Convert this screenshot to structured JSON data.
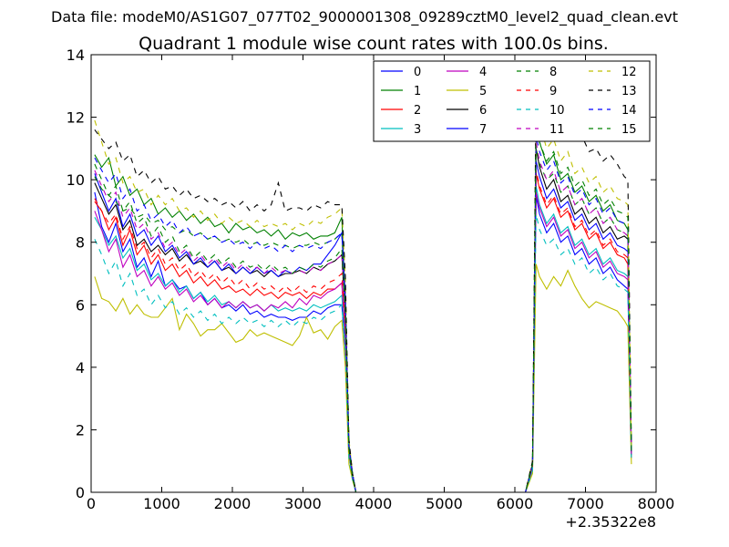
{
  "chart_data": {
    "type": "line",
    "suptitle": "Data file: modeM0/AS1G07_077T02_9000001308_09289cztM0_level2_quad_clean.evt",
    "title": "Quadrant 1 module wise count rates with 100.0s bins.",
    "xlabel": "",
    "ylabel": "",
    "x_offset_label": "+2.35322e8",
    "xlim": [
      0,
      8000
    ],
    "ylim": [
      0,
      14
    ],
    "xticks": [
      0,
      1000,
      2000,
      3000,
      4000,
      5000,
      6000,
      7000,
      8000
    ],
    "yticks": [
      0,
      2,
      4,
      6,
      8,
      10,
      12,
      14
    ],
    "grid": false,
    "legend": {
      "position": "top-right",
      "ncol": 4
    },
    "x": [
      50,
      150,
      250,
      350,
      450,
      550,
      650,
      750,
      850,
      950,
      1050,
      1150,
      1250,
      1350,
      1450,
      1550,
      1650,
      1750,
      1850,
      1950,
      2050,
      2150,
      2250,
      2350,
      2450,
      2550,
      2650,
      2750,
      2850,
      2950,
      3050,
      3150,
      3250,
      3350,
      3450,
      3550,
      3600,
      3650,
      3700,
      3750,
      3850,
      4000,
      6000,
      6150,
      6250,
      6300,
      6350,
      6450,
      6550,
      6650,
      6750,
      6850,
      6950,
      7050,
      7150,
      7250,
      7350,
      7450,
      7550,
      7600,
      7650
    ],
    "series": [
      {
        "name": "0",
        "color": "#0000ff",
        "style": "solid",
        "values": [
          9.6,
          8.5,
          8.0,
          8.6,
          7.7,
          8.1,
          7.2,
          7.5,
          6.9,
          7.4,
          6.6,
          6.8,
          6.5,
          6.6,
          6.2,
          6.4,
          6.0,
          6.2,
          5.9,
          6.0,
          5.8,
          6.0,
          5.7,
          5.8,
          5.6,
          5.7,
          5.6,
          5.6,
          5.5,
          5.6,
          5.6,
          5.8,
          5.7,
          5.9,
          6.0,
          6.0,
          4.5,
          1.2,
          0.5,
          0,
          0,
          0,
          0,
          0,
          0.7,
          9.5,
          8.9,
          8.3,
          8.6,
          8.0,
          8.2,
          7.6,
          7.8,
          7.3,
          7.5,
          7.0,
          7.2,
          6.8,
          6.6,
          6.5,
          1.1
        ]
      },
      {
        "name": "1",
        "color": "#008000",
        "style": "solid",
        "values": [
          10.8,
          10.4,
          10.7,
          9.8,
          10.1,
          9.5,
          9.7,
          9.2,
          9.4,
          8.9,
          9.1,
          8.8,
          9.0,
          8.7,
          8.9,
          8.6,
          8.8,
          8.5,
          8.6,
          8.3,
          8.6,
          8.4,
          8.5,
          8.3,
          8.4,
          8.2,
          8.4,
          8.1,
          8.3,
          8.2,
          8.3,
          8.1,
          8.2,
          8.2,
          8.3,
          8.8,
          6.0,
          1.5,
          0.6,
          0,
          0,
          0,
          0,
          0,
          0.9,
          11.6,
          11.2,
          10.5,
          10.8,
          10.0,
          10.2,
          9.6,
          9.8,
          9.3,
          9.5,
          9.0,
          9.2,
          8.7,
          8.6,
          8.4,
          1.3
        ]
      },
      {
        "name": "2",
        "color": "#ff0000",
        "style": "solid",
        "values": [
          9.3,
          9.0,
          8.4,
          8.8,
          7.9,
          8.4,
          7.6,
          7.9,
          7.3,
          7.6,
          7.1,
          7.3,
          6.9,
          7.1,
          6.7,
          6.9,
          6.6,
          6.8,
          6.5,
          6.6,
          6.4,
          6.5,
          6.3,
          6.5,
          6.3,
          6.4,
          6.2,
          6.4,
          6.3,
          6.4,
          6.2,
          6.4,
          6.3,
          6.5,
          6.5,
          6.7,
          5.0,
          1.3,
          0.5,
          0,
          0,
          0,
          0,
          0,
          0.8,
          10.2,
          9.7,
          9.1,
          9.4,
          8.8,
          9.0,
          8.4,
          8.6,
          8.1,
          8.3,
          7.8,
          8.0,
          7.6,
          7.5,
          7.3,
          1.2
        ]
      },
      {
        "name": "3",
        "color": "#00bfbf",
        "style": "solid",
        "values": [
          8.8,
          8.4,
          7.9,
          8.2,
          7.5,
          7.8,
          7.1,
          7.3,
          6.8,
          7.0,
          6.6,
          6.8,
          6.4,
          6.6,
          6.2,
          6.4,
          6.1,
          6.3,
          6.0,
          6.1,
          5.9,
          6.1,
          5.9,
          6.0,
          5.8,
          6.0,
          5.8,
          5.9,
          5.8,
          5.9,
          5.8,
          6.0,
          5.9,
          6.0,
          6.1,
          6.3,
          4.7,
          1.2,
          0.5,
          0,
          0,
          0,
          0,
          0,
          0.7,
          9.8,
          9.2,
          8.6,
          8.9,
          8.3,
          8.5,
          7.9,
          8.1,
          7.6,
          7.8,
          7.3,
          7.5,
          7.1,
          7.0,
          6.9,
          1.1
        ]
      },
      {
        "name": "4",
        "color": "#bf00bf",
        "style": "solid",
        "values": [
          9.0,
          8.4,
          7.7,
          8.1,
          7.2,
          7.6,
          6.9,
          7.1,
          6.6,
          6.9,
          6.5,
          6.7,
          6.3,
          6.5,
          6.1,
          6.3,
          6.0,
          6.2,
          5.9,
          6.1,
          5.9,
          6.1,
          5.9,
          6.0,
          5.8,
          6.0,
          5.9,
          6.1,
          5.9,
          6.2,
          6.0,
          6.3,
          6.2,
          6.4,
          6.5,
          6.7,
          5.0,
          1.3,
          0.5,
          0,
          0,
          0,
          0,
          0,
          0.8,
          9.6,
          9.1,
          8.5,
          8.8,
          8.2,
          8.4,
          7.8,
          8.0,
          7.5,
          7.7,
          7.2,
          7.4,
          7.0,
          6.9,
          6.8,
          1.1
        ]
      },
      {
        "name": "5",
        "color": "#bfbf00",
        "style": "solid",
        "values": [
          6.9,
          6.2,
          6.1,
          5.8,
          6.2,
          5.7,
          6.0,
          5.7,
          5.6,
          5.6,
          5.9,
          6.2,
          5.2,
          5.7,
          5.4,
          5.0,
          5.2,
          5.2,
          5.4,
          5.1,
          4.8,
          4.9,
          5.2,
          5.0,
          5.1,
          5.0,
          4.9,
          4.8,
          4.7,
          5.0,
          5.6,
          5.1,
          5.2,
          4.9,
          5.3,
          5.5,
          4.0,
          0.9,
          0.4,
          0,
          0,
          0,
          0,
          0,
          0.6,
          7.3,
          6.9,
          6.5,
          6.9,
          6.6,
          7.1,
          6.6,
          6.2,
          5.9,
          6.1,
          6.0,
          5.9,
          5.8,
          5.5,
          5.3,
          0.9
        ]
      },
      {
        "name": "6",
        "color": "#000000",
        "style": "solid",
        "values": [
          9.9,
          9.4,
          8.9,
          9.2,
          8.4,
          8.7,
          7.9,
          8.1,
          7.7,
          7.9,
          7.6,
          7.8,
          7.4,
          7.6,
          7.3,
          7.4,
          7.2,
          7.4,
          7.1,
          7.2,
          7.0,
          7.2,
          7.0,
          7.1,
          6.9,
          7.1,
          6.9,
          7.0,
          7.0,
          7.1,
          7.0,
          7.2,
          7.1,
          7.3,
          7.4,
          7.6,
          5.6,
          1.4,
          0.5,
          0,
          0,
          0,
          0,
          0,
          0.9,
          11.0,
          10.4,
          9.7,
          10.0,
          9.3,
          9.5,
          8.9,
          9.1,
          8.6,
          8.8,
          8.3,
          8.5,
          8.1,
          8.2,
          8.1,
          1.2
        ]
      },
      {
        "name": "7",
        "color": "#0000ff",
        "style": "solid",
        "values": [
          10.2,
          9.6,
          9.0,
          9.4,
          8.5,
          8.9,
          8.2,
          8.4,
          7.9,
          8.2,
          7.7,
          7.9,
          7.5,
          7.7,
          7.3,
          7.5,
          7.2,
          7.4,
          7.1,
          7.3,
          7.0,
          7.2,
          7.0,
          7.2,
          7.0,
          7.1,
          6.9,
          7.1,
          7.0,
          7.2,
          7.1,
          7.3,
          7.3,
          7.6,
          7.9,
          8.3,
          6.1,
          1.5,
          0.6,
          0,
          0,
          0,
          0,
          0,
          0.9,
          10.6,
          10.1,
          9.4,
          9.7,
          9.1,
          9.3,
          8.7,
          8.9,
          8.4,
          8.6,
          8.1,
          8.3,
          7.9,
          7.8,
          7.7,
          1.2
        ]
      },
      {
        "name": "8",
        "color": "#008000",
        "style": "dashed",
        "values": [
          10.1,
          9.7,
          9.5,
          9.3,
          9.0,
          9.1,
          8.8,
          8.9,
          8.6,
          8.7,
          8.4,
          8.5,
          8.3,
          8.4,
          8.2,
          8.3,
          8.1,
          8.2,
          8.0,
          8.1,
          8.0,
          8.1,
          7.9,
          8.0,
          7.9,
          8.0,
          7.9,
          7.9,
          7.8,
          7.9,
          7.9,
          8.0,
          7.9,
          8.0,
          8.1,
          8.3,
          6.2,
          1.5,
          0.6,
          0,
          0,
          0,
          0,
          0,
          0.9,
          11.0,
          10.5,
          10.0,
          10.2,
          9.6,
          9.8,
          9.2,
          9.4,
          8.9,
          9.1,
          8.6,
          8.8,
          8.4,
          8.3,
          8.2,
          1.3
        ]
      },
      {
        "name": "9",
        "color": "#ff0000",
        "style": "dashed",
        "values": [
          9.4,
          9.0,
          8.6,
          8.9,
          8.1,
          8.5,
          7.8,
          8.0,
          7.5,
          7.8,
          7.3,
          7.5,
          7.1,
          7.3,
          6.9,
          7.1,
          6.8,
          7.0,
          6.7,
          6.9,
          6.6,
          6.8,
          6.5,
          6.7,
          6.5,
          6.6,
          6.4,
          6.6,
          6.4,
          6.6,
          6.4,
          6.6,
          6.5,
          6.7,
          6.8,
          7.0,
          5.2,
          1.3,
          0.5,
          0,
          0,
          0,
          0,
          0,
          0.8,
          10.3,
          9.8,
          9.2,
          9.5,
          8.9,
          9.1,
          8.5,
          8.7,
          8.2,
          8.4,
          7.9,
          8.1,
          7.7,
          7.6,
          7.5,
          1.2
        ]
      },
      {
        "name": "10",
        "color": "#00bfbf",
        "style": "dashed",
        "values": [
          8.1,
          7.6,
          7.0,
          7.4,
          6.6,
          7.0,
          6.3,
          6.5,
          6.0,
          6.3,
          5.9,
          6.1,
          5.7,
          5.9,
          5.6,
          5.8,
          5.5,
          5.7,
          5.4,
          5.6,
          5.4,
          5.6,
          5.4,
          5.5,
          5.3,
          5.5,
          5.3,
          5.5,
          5.3,
          5.5,
          5.4,
          5.6,
          5.5,
          5.7,
          5.8,
          6.0,
          4.5,
          1.1,
          0.4,
          0,
          0,
          0,
          0,
          0,
          0.7,
          8.9,
          8.4,
          7.9,
          8.1,
          7.6,
          7.8,
          7.3,
          7.5,
          7.0,
          7.2,
          6.8,
          7.0,
          6.6,
          6.5,
          6.4,
          1.0
        ]
      },
      {
        "name": "11",
        "color": "#bf00bf",
        "style": "dashed",
        "values": [
          10.3,
          9.8,
          9.3,
          9.6,
          8.8,
          9.1,
          8.4,
          8.6,
          8.1,
          8.3,
          7.8,
          8.0,
          7.6,
          7.8,
          7.4,
          7.6,
          7.3,
          7.5,
          7.2,
          7.4,
          7.1,
          7.3,
          7.1,
          7.2,
          7.0,
          7.2,
          7.0,
          7.1,
          7.0,
          7.1,
          7.0,
          7.2,
          7.1,
          7.3,
          7.4,
          7.6,
          5.6,
          1.4,
          0.5,
          0,
          0,
          0,
          0,
          0,
          0.9,
          11.2,
          10.6,
          10.0,
          10.3,
          9.6,
          9.8,
          9.2,
          9.4,
          8.9,
          9.1,
          8.6,
          8.8,
          8.4,
          8.3,
          8.2,
          1.2
        ]
      },
      {
        "name": "12",
        "color": "#bfbf00",
        "style": "dashed",
        "values": [
          11.9,
          11.2,
          10.5,
          10.7,
          9.9,
          10.1,
          9.6,
          9.7,
          9.2,
          9.5,
          9.2,
          9.4,
          9.0,
          9.1,
          8.8,
          9.0,
          8.7,
          8.9,
          8.6,
          8.8,
          8.6,
          8.7,
          8.5,
          8.7,
          8.5,
          8.6,
          8.5,
          8.6,
          8.4,
          8.6,
          8.5,
          8.7,
          8.6,
          8.8,
          8.9,
          9.1,
          6.8,
          1.7,
          0.6,
          0,
          0,
          0,
          0,
          0,
          1.0,
          12.2,
          11.8,
          11.0,
          11.3,
          10.6,
          10.9,
          10.2,
          10.4,
          9.9,
          10.1,
          9.6,
          9.8,
          9.4,
          9.3,
          9.2,
          1.4
        ]
      },
      {
        "name": "13",
        "color": "#000000",
        "style": "dashed",
        "values": [
          11.6,
          11.3,
          11.0,
          11.2,
          10.6,
          10.8,
          10.1,
          10.3,
          9.9,
          10.1,
          9.7,
          9.8,
          9.5,
          9.7,
          9.4,
          9.5,
          9.3,
          9.4,
          9.2,
          9.3,
          9.1,
          9.3,
          9.0,
          9.2,
          9.0,
          9.2,
          9.9,
          9.0,
          9.1,
          9.1,
          9.0,
          9.2,
          9.1,
          9.3,
          9.2,
          9.2,
          6.9,
          1.7,
          0.6,
          0,
          0,
          0,
          0,
          0,
          1.0,
          12.9,
          12.6,
          12.0,
          12.2,
          11.6,
          11.8,
          11.2,
          11.4,
          10.9,
          11.0,
          10.6,
          10.8,
          10.5,
          10.1,
          10.0,
          1.5
        ]
      },
      {
        "name": "14",
        "color": "#0000ff",
        "style": "dashed",
        "values": [
          10.7,
          10.3,
          9.9,
          10.2,
          9.4,
          9.7,
          9.0,
          9.2,
          8.7,
          8.9,
          8.5,
          8.7,
          8.3,
          8.5,
          8.2,
          8.3,
          8.1,
          8.2,
          8.0,
          8.1,
          7.9,
          8.0,
          7.8,
          8.0,
          7.8,
          7.9,
          7.7,
          7.9,
          7.7,
          7.9,
          7.8,
          7.9,
          7.8,
          8.0,
          8.1,
          8.3,
          6.2,
          1.5,
          0.6,
          0,
          0,
          0,
          0,
          0,
          0.9,
          11.4,
          10.9,
          10.3,
          10.6,
          9.9,
          10.1,
          9.5,
          9.7,
          9.2,
          9.4,
          8.9,
          9.1,
          8.7,
          8.6,
          8.5,
          1.3
        ]
      },
      {
        "name": "15",
        "color": "#008000",
        "style": "dashed",
        "values": [
          10.5,
          10.0,
          9.5,
          9.8,
          9.0,
          9.3,
          8.6,
          8.8,
          8.2,
          8.5,
          8.0,
          8.2,
          7.7,
          7.9,
          7.5,
          7.7,
          7.4,
          7.6,
          7.3,
          7.5,
          7.2,
          7.4,
          7.2,
          7.3,
          7.1,
          7.3,
          7.1,
          7.2,
          7.0,
          7.2,
          7.1,
          7.3,
          7.2,
          7.4,
          7.5,
          7.8,
          5.8,
          1.4,
          0.5,
          0,
          0,
          0,
          0,
          0,
          0.9,
          11.8,
          11.2,
          10.6,
          10.9,
          10.2,
          10.4,
          9.8,
          10.0,
          9.5,
          9.7,
          9.2,
          9.4,
          9.0,
          8.9,
          8.8,
          1.3
        ]
      }
    ]
  }
}
